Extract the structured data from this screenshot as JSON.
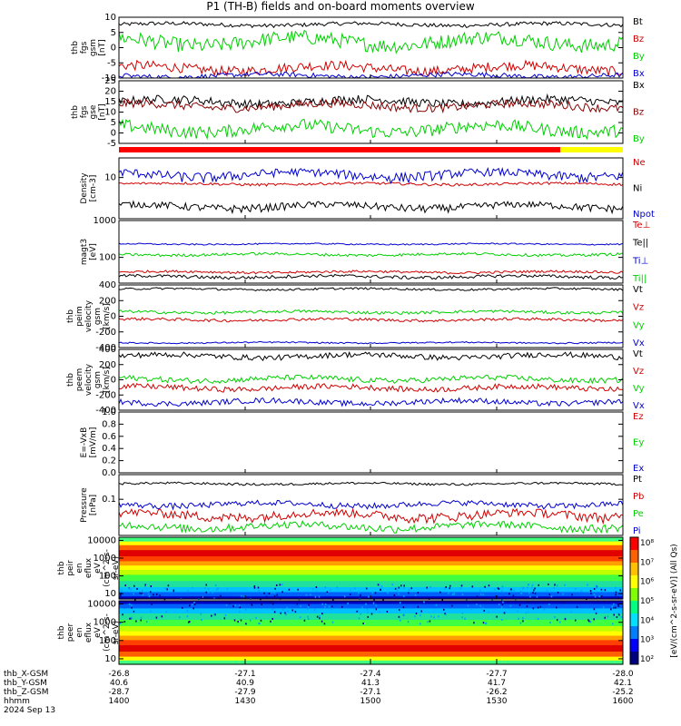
{
  "title": "P1 (TH-B) fields and on-board moments overview",
  "colors": {
    "black": "#000000",
    "red": "#d00000",
    "green": "#00d000",
    "blue": "#0000d0",
    "darkred": "#8b0000",
    "yellow": "#ffff00",
    "bar_red": "#ff0000",
    "bar_yellow": "#ffff00"
  },
  "chart_data": [
    {
      "type": "line",
      "ylabel": [
        "thb",
        "fgs",
        "gsm",
        "[nT]"
      ],
      "ylim": [
        -10,
        15
      ],
      "yticks": [
        "10",
        "5",
        "0",
        "-5",
        "-10"
      ],
      "series": [
        {
          "name": "Bt",
          "color": "black",
          "level": 12,
          "noise": 0.8
        },
        {
          "name": "Bz",
          "color": "red",
          "level": -6,
          "noise": 2
        },
        {
          "name": "By",
          "color": "green",
          "level": 5,
          "noise": 3
        },
        {
          "name": "Bx",
          "color": "blue",
          "level": -9,
          "noise": 1
        }
      ]
    },
    {
      "type": "line",
      "ylabel": [
        "thb",
        "fgs",
        "gse",
        "[nT]"
      ],
      "ylim": [
        -5,
        25
      ],
      "yticks": [
        "25",
        "20",
        "15",
        "10",
        "5",
        "0",
        "-5"
      ],
      "series": [
        {
          "name": "Bx",
          "color": "black",
          "level": 15,
          "noise": 2
        },
        {
          "name": "Bz",
          "color": "darkred",
          "level": 13,
          "noise": 2
        },
        {
          "name": "By",
          "color": "green",
          "level": 2,
          "noise": 3
        }
      ]
    },
    {
      "type": "line",
      "ylabel": [
        "Density",
        "[cm-3]"
      ],
      "ylim": [
        1,
        30
      ],
      "yscale": "log",
      "yticks": [
        "10"
      ],
      "series": [
        {
          "name": "Ne",
          "color": "red",
          "level": 7,
          "noise": 0.5
        },
        {
          "name": "Ni",
          "color": "black",
          "level": 2,
          "noise": 0.4
        },
        {
          "name": "Npot",
          "color": "blue",
          "level": 12,
          "noise": 3
        }
      ]
    },
    {
      "type": "line",
      "ylabel": [
        "magt3",
        "[eV]"
      ],
      "ylim": [
        20,
        1000
      ],
      "yscale": "log",
      "yticks": [
        "1000",
        "100"
      ],
      "series": [
        {
          "name": "Te⊥",
          "color": "red",
          "level": 40,
          "noise": 3
        },
        {
          "name": "Te||",
          "color": "black",
          "level": 30,
          "noise": 3
        },
        {
          "name": "Ti⊥",
          "color": "blue",
          "level": 230,
          "noise": 10
        },
        {
          "name": "Ti||",
          "color": "green",
          "level": 120,
          "noise": 10
        }
      ]
    },
    {
      "type": "line",
      "ylabel": [
        "thb",
        "peim",
        "velocity",
        "gsm",
        "[km/s]"
      ],
      "ylim": [
        -450,
        450
      ],
      "yticks": [
        "400",
        "200",
        "0",
        "-200",
        "-400"
      ],
      "series": [
        {
          "name": "Vt",
          "color": "black",
          "level": 390,
          "noise": 15
        },
        {
          "name": "Vz",
          "color": "red",
          "level": -50,
          "noise": 20
        },
        {
          "name": "Vy",
          "color": "green",
          "level": 60,
          "noise": 20
        },
        {
          "name": "Vx",
          "color": "blue",
          "level": -380,
          "noise": 10
        }
      ]
    },
    {
      "type": "line",
      "ylabel": [
        "thb",
        "peem",
        "velocity",
        "gsm",
        "[km/s]"
      ],
      "ylim": [
        -450,
        450
      ],
      "yticks": [
        "400",
        "200",
        "0",
        "-200",
        "-400"
      ],
      "series": [
        {
          "name": "Vt",
          "color": "black",
          "level": 350,
          "noise": 40
        },
        {
          "name": "Vz",
          "color": "red",
          "level": -120,
          "noise": 40
        },
        {
          "name": "Vy",
          "color": "green",
          "level": 10,
          "noise": 40
        },
        {
          "name": "Vx",
          "color": "blue",
          "level": -330,
          "noise": 40
        }
      ]
    },
    {
      "type": "line",
      "ylabel": [
        "E=-VxB",
        "[mV/m]"
      ],
      "ylim": [
        0,
        1
      ],
      "yticks": [
        "1.0",
        "0.8",
        "0.6",
        "0.4",
        "0.2",
        "0.0"
      ],
      "series": [
        {
          "name": "Ez",
          "color": "red"
        },
        {
          "name": "Ey",
          "color": "green"
        },
        {
          "name": "Ex",
          "color": "blue"
        }
      ]
    },
    {
      "type": "line",
      "ylabel": [
        "Pressure",
        "[nPa]"
      ],
      "ylim": [
        0.02,
        0.3
      ],
      "yscale": "log",
      "yticks": [
        "0.1"
      ],
      "series": [
        {
          "name": "Pt",
          "color": "black",
          "level": 0.2,
          "noise": 0.01
        },
        {
          "name": "Pb",
          "color": "red",
          "level": 0.05,
          "noise": 0.01
        },
        {
          "name": "Pe",
          "color": "green",
          "level": 0.03,
          "noise": 0.005
        },
        {
          "name": "Pi",
          "color": "blue",
          "level": 0.08,
          "noise": 0.01
        }
      ]
    },
    {
      "type": "heatmap",
      "ylabel": [
        "thb",
        "peir",
        "en",
        "eflux",
        "eV",
        "(cm^2-s-",
        "sr-eV)"
      ],
      "ylim": [
        5,
        15000
      ],
      "yscale": "log",
      "yticks": [
        "10000",
        "1000",
        "100",
        "10"
      ]
    },
    {
      "type": "heatmap",
      "ylabel": [
        "thb",
        "peer",
        "en",
        "eflux",
        "eV",
        "(cm^2-s-",
        "sr-eV)"
      ],
      "ylim": [
        5,
        15000
      ],
      "yscale": "log",
      "yticks": [
        "10000",
        "1000",
        "100",
        "10"
      ]
    }
  ],
  "colorbar": {
    "ticks": [
      "10⁸",
      "10⁷",
      "10⁶",
      "10⁵",
      "10⁴",
      "10³",
      "10²"
    ],
    "label": "[eV/(cm^2-s-sr-eV)] (All Qs)"
  },
  "xaxis": {
    "rows": [
      {
        "label": "thb_X-GSM",
        "values": [
          "-26.8",
          "-27.1",
          "-27.4",
          "-27.7",
          "-28.0"
        ]
      },
      {
        "label": "thb_Y-GSM",
        "values": [
          "40.6",
          "40.9",
          "41.3",
          "41.7",
          "42.1"
        ]
      },
      {
        "label": "thb_Z-GSM",
        "values": [
          "-28.7",
          "-27.9",
          "-27.1",
          "-26.2",
          "-25.2"
        ]
      },
      {
        "label": "hhmm",
        "values": [
          "1400",
          "1430",
          "1500",
          "1530",
          "1600"
        ]
      }
    ],
    "date": "2024 Sep 13"
  }
}
